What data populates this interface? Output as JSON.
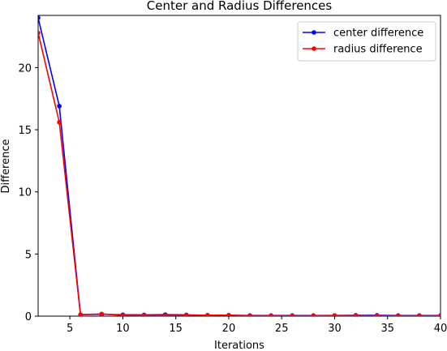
{
  "chart_data": {
    "type": "line",
    "title": "Center and Radius Differences",
    "xlabel": "Iterations",
    "ylabel": "Difference",
    "xlim": [
      2,
      40
    ],
    "ylim": [
      0,
      24.2
    ],
    "xticks": [
      5,
      10,
      15,
      20,
      25,
      30,
      35,
      40
    ],
    "yticks": [
      0,
      5,
      10,
      15,
      20
    ],
    "grid": false,
    "legend_position": "top-right",
    "series": [
      {
        "name": "center difference",
        "color": "#0000ff",
        "x": [
          2,
          4,
          6,
          8,
          10,
          12,
          14,
          16,
          18,
          20,
          22,
          24,
          26,
          28,
          30,
          32,
          34,
          36,
          38,
          40
        ],
        "y": [
          24.0,
          16.9,
          0.12,
          0.15,
          0.11,
          0.1,
          0.12,
          0.1,
          0.06,
          0.07,
          0.05,
          0.05,
          0.05,
          0.05,
          0.05,
          0.07,
          0.07,
          0.05,
          0.05,
          0.05
        ]
      },
      {
        "name": "radius difference",
        "color": "#ff0000",
        "x": [
          2,
          4,
          6,
          8,
          10,
          12,
          14,
          16,
          18,
          20,
          22,
          24,
          26,
          28,
          30,
          32,
          34,
          36,
          38,
          40
        ],
        "y": [
          22.8,
          15.6,
          0.12,
          0.18,
          0.06,
          0.06,
          0.05,
          0.07,
          0.08,
          0.08,
          0.04,
          0.04,
          0.03,
          0.04,
          0.05,
          0.04,
          0.03,
          0.03,
          0.03,
          0.03
        ]
      }
    ]
  }
}
